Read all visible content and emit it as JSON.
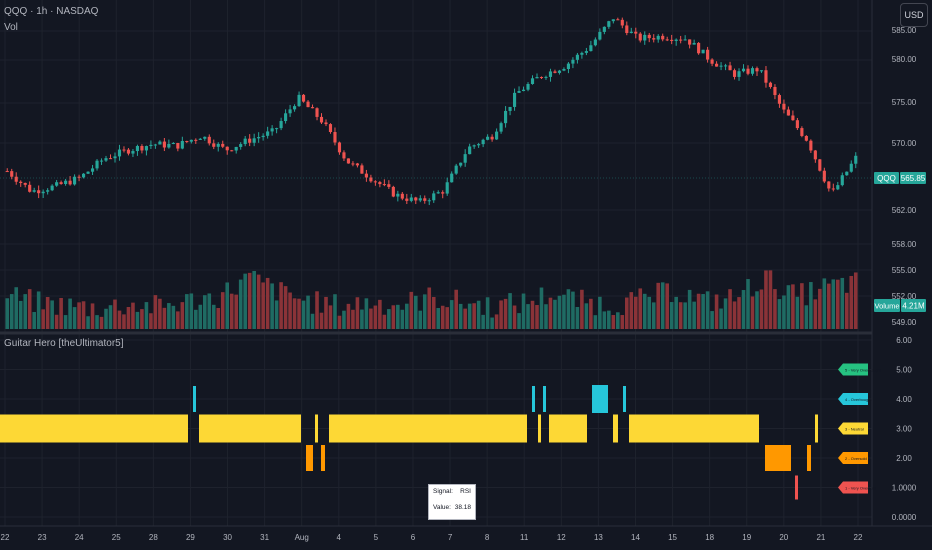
{
  "header": {
    "symbol_line": "QQQ · 1h · NASDAQ",
    "volume_label": "Vol",
    "indicator_label": "Guitar Hero [theUltimator5]",
    "currency_button": "USD"
  },
  "colors": {
    "background": "#131722",
    "grid": "#1e222d",
    "up": "#26a69a",
    "down": "#ef5350",
    "vol_up": "#1f6b63",
    "vol_down": "#8a3338",
    "very_overbought": "#26c281",
    "overbought": "#26c6da",
    "neutral": "#fdd835",
    "oversold": "#ff9800",
    "very_oversold": "#ef5350",
    "axis_text": "#b2b5be"
  },
  "price_badge": {
    "symbol": "QQQ",
    "value": "565.85"
  },
  "volume_badge": {
    "label": "Volume",
    "value": "4.21M"
  },
  "price_axis_labels": [
    "580.00",
    "575.00",
    "570.00",
    "562.00",
    "558.00",
    "555.00",
    "552.00",
    "549.00"
  ],
  "indicator_axis_labels": [
    "6.00",
    "5.00",
    "4.00",
    "3.00",
    "2.00",
    "1.0000",
    "0.0000"
  ],
  "x_axis_labels": [
    "22",
    "23",
    "24",
    "25",
    "28",
    "29",
    "30",
    "31",
    "Aug",
    "4",
    "5",
    "6",
    "7",
    "8",
    "11",
    "12",
    "13",
    "14",
    "15",
    "18",
    "19",
    "20",
    "21",
    "22"
  ],
  "legend": [
    {
      "state": "very_overbought",
      "value": 5,
      "label": "5 - Very Overbought"
    },
    {
      "state": "overbought",
      "value": 4,
      "label": "4 - Overbought"
    },
    {
      "state": "neutral",
      "value": 3,
      "label": "3 - Neutral"
    },
    {
      "state": "oversold",
      "value": 2,
      "label": "2 - Oversold"
    },
    {
      "state": "very_oversold",
      "value": 1,
      "label": "1 - Very Oversold"
    }
  ],
  "tooltip": {
    "signal_label": "Signal:",
    "signal_value": "RSI",
    "value_label": "Value:",
    "value_value": "38.18"
  },
  "chart_data": [
    {
      "type": "candlestick",
      "title": "QQQ · 1h · NASDAQ",
      "x": [
        "22",
        "23",
        "24",
        "25",
        "28",
        "29",
        "30",
        "31",
        "Aug",
        "4",
        "5",
        "6",
        "7",
        "8",
        "11",
        "12",
        "13",
        "14",
        "15",
        "18",
        "19",
        "20",
        "21",
        "22"
      ],
      "ylim": [
        549,
        584
      ],
      "last_price": 565.85,
      "approx_close_path": [
        564.3,
        561.9,
        562.5,
        563.5,
        565.8,
        566.8,
        567.5,
        567.3,
        568.5,
        566.8,
        568.0,
        569.0,
        573.0,
        570.2,
        565.5,
        563.5,
        561.5,
        560.6,
        562.0,
        567.0,
        568.5,
        573.5,
        575.6,
        576.8,
        579.0,
        582.5,
        580.0,
        580.3,
        580.0,
        577.5,
        575.8,
        576.4,
        571.5,
        568.0,
        561.5,
        565.85
      ]
    },
    {
      "type": "bar",
      "title": "Vol",
      "last_volume": "4.21M",
      "relative_heights": [
        0.45,
        0.28,
        0.22,
        0.18,
        0.25,
        0.2,
        0.32,
        0.42,
        0.8,
        0.5,
        0.3,
        0.22,
        0.3,
        0.25,
        0.4,
        0.3,
        0.22,
        0.28,
        0.48,
        0.3,
        0.25,
        0.35,
        0.55,
        0.3,
        0.38,
        0.8,
        0.4,
        0.6,
        0.7
      ]
    },
    {
      "type": "heatmap",
      "title": "Guitar Hero [theUltimator5]",
      "ylim": [
        0,
        6
      ],
      "signal": "RSI",
      "value": 38.18,
      "states": [
        "5 - Very Overbought",
        "4 - Overbought",
        "3 - Neutral",
        "2 - Oversold",
        "1 - Very Oversold"
      ],
      "segments": [
        {
          "state": 3,
          "from": 0,
          "to": 188
        },
        {
          "state": 4,
          "from": 193,
          "to": 196
        },
        {
          "state": 3,
          "from": 199,
          "to": 301
        },
        {
          "state": 2,
          "from": 306,
          "to": 313
        },
        {
          "state": 3,
          "from": 315,
          "to": 318
        },
        {
          "state": 2,
          "from": 321,
          "to": 325
        },
        {
          "state": 3,
          "from": 329,
          "to": 527
        },
        {
          "state": 4,
          "from": 532,
          "to": 535
        },
        {
          "state": 3,
          "from": 538,
          "to": 541
        },
        {
          "state": 4,
          "from": 543,
          "to": 546
        },
        {
          "state": 3,
          "from": 549,
          "to": 587
        },
        {
          "state": 4,
          "from": 592,
          "to": 608
        },
        {
          "state": 3,
          "from": 613,
          "to": 618
        },
        {
          "state": 4,
          "from": 623,
          "to": 626
        },
        {
          "state": 3,
          "from": 629,
          "to": 759
        },
        {
          "state": 2,
          "from": 765,
          "to": 791
        },
        {
          "state": 1,
          "from": 795,
          "to": 798
        },
        {
          "state": 2,
          "from": 807,
          "to": 811
        },
        {
          "state": 3,
          "from": 815,
          "to": 818
        }
      ]
    }
  ]
}
